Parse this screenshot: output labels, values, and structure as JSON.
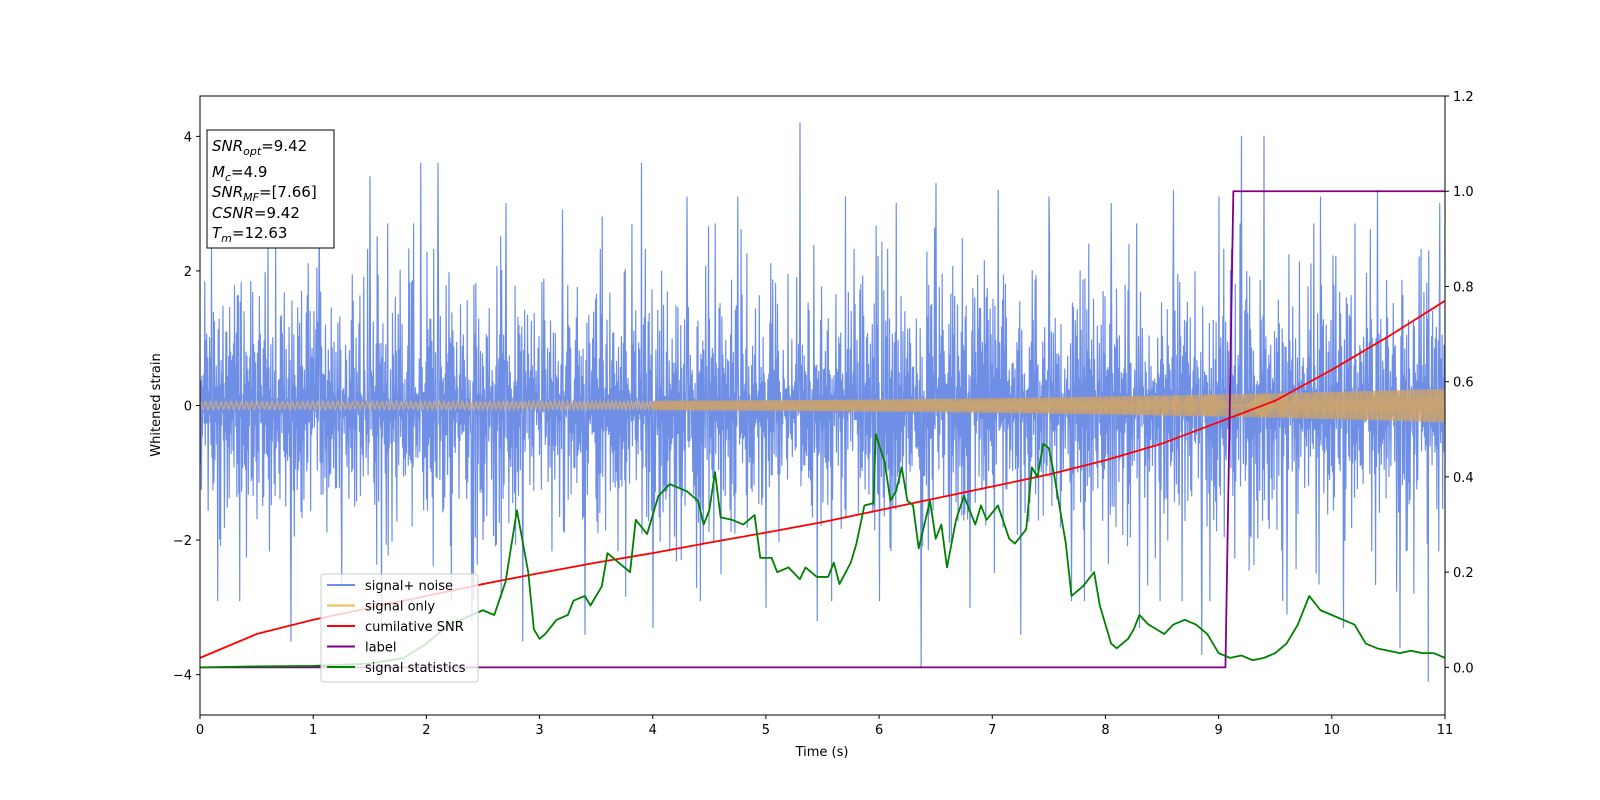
{
  "chart_data": {
    "type": "line",
    "xlabel": "Time (s)",
    "ylabel": "Whitened strain",
    "xlim": [
      0,
      11
    ],
    "ylim_left": [
      -4.6,
      4.6
    ],
    "ylim_right": [
      -0.1,
      1.2
    ],
    "x_ticks": [
      0,
      1,
      2,
      3,
      4,
      5,
      6,
      7,
      8,
      9,
      10,
      11
    ],
    "y_ticks_left": [
      4,
      2,
      0,
      -2,
      -4
    ],
    "y_ticks_right": [
      1.2,
      1.0,
      0.8,
      0.6,
      0.4,
      0.2,
      0.0
    ],
    "legend_position": "lower-left",
    "legend": [
      {
        "label": "signal+ noise",
        "color": "#6f8fe6"
      },
      {
        "label": "signal only",
        "color": "#f5b857"
      },
      {
        "label": "cumilative SNR",
        "color": "#ff0000"
      },
      {
        "label": "label",
        "color": "#800080"
      },
      {
        "label": "signal statistics",
        "color": "#008000"
      }
    ],
    "info_box": {
      "snr_opt": {
        "sym": "SNR",
        "sub": "opt",
        "value": "=9.42"
      },
      "mc": {
        "sym": "M",
        "sub": "c",
        "value": "=4.9"
      },
      "snr_mf": {
        "sym": "SNR",
        "sub": "MF",
        "value": "=[7.66]"
      },
      "csnr": {
        "sym": "CSNR",
        "sub": "",
        "value": "=9.42"
      },
      "tm": {
        "sym": "T",
        "sub": "m",
        "value": "=12.63"
      }
    },
    "series": [
      {
        "name": "signal+ noise",
        "axis": "left",
        "color": "#6f8fe6",
        "envelope_typical": 1.8,
        "peaks": [
          [
            0.1,
            2.5
          ],
          [
            0.35,
            -2.9
          ],
          [
            0.6,
            2.6
          ],
          [
            0.8,
            -3.5
          ],
          [
            1.05,
            3.0
          ],
          [
            1.25,
            -2.7
          ],
          [
            1.5,
            3.4
          ],
          [
            1.6,
            -3.3
          ],
          [
            1.95,
            3.6
          ],
          [
            2.1,
            3.6
          ],
          [
            2.4,
            -3.2
          ],
          [
            2.7,
            3.0
          ],
          [
            2.85,
            -3.5
          ],
          [
            3.2,
            2.9
          ],
          [
            3.4,
            -3.4
          ],
          [
            3.55,
            2.8
          ],
          [
            3.9,
            3.6
          ],
          [
            4.0,
            -3.3
          ],
          [
            4.3,
            3.1
          ],
          [
            4.6,
            -2.5
          ],
          [
            4.75,
            3.1
          ],
          [
            5.0,
            -3.0
          ],
          [
            5.3,
            4.2
          ],
          [
            5.45,
            -3.2
          ],
          [
            5.7,
            3.1
          ],
          [
            6.0,
            -2.9
          ],
          [
            6.15,
            3.0
          ],
          [
            6.37,
            -3.9
          ],
          [
            6.5,
            3.3
          ],
          [
            6.8,
            -3.0
          ],
          [
            7.05,
            3.2
          ],
          [
            7.25,
            -3.4
          ],
          [
            7.5,
            3.1
          ],
          [
            7.7,
            -2.9
          ],
          [
            8.05,
            3.0
          ],
          [
            8.3,
            -3.3
          ],
          [
            8.6,
            3.2
          ],
          [
            8.85,
            -3.7
          ],
          [
            9.0,
            3.1
          ],
          [
            9.2,
            4.0
          ],
          [
            9.4,
            4.0
          ],
          [
            9.6,
            -3.1
          ],
          [
            9.9,
            3.1
          ],
          [
            10.1,
            -3.3
          ],
          [
            10.4,
            3.2
          ],
          [
            10.6,
            -3.6
          ],
          [
            10.85,
            -4.1
          ],
          [
            10.95,
            3.0
          ]
        ]
      },
      {
        "name": "signal only",
        "axis": "left",
        "color": "#f5b857",
        "amplitude_start": 0.06,
        "amplitude_end": 0.25
      },
      {
        "name": "cumilative SNR",
        "axis": "right",
        "color": "#ff0000",
        "points": [
          [
            0,
            0.02
          ],
          [
            0.5,
            0.07
          ],
          [
            1,
            0.1
          ],
          [
            1.5,
            0.125
          ],
          [
            2,
            0.15
          ],
          [
            2.5,
            0.175
          ],
          [
            3,
            0.198
          ],
          [
            3.5,
            0.22
          ],
          [
            4,
            0.24
          ],
          [
            4.5,
            0.262
          ],
          [
            5,
            0.283
          ],
          [
            5.5,
            0.305
          ],
          [
            6,
            0.33
          ],
          [
            6.5,
            0.355
          ],
          [
            7,
            0.38
          ],
          [
            7.5,
            0.405
          ],
          [
            8,
            0.435
          ],
          [
            8.5,
            0.47
          ],
          [
            9,
            0.515
          ],
          [
            9.5,
            0.56
          ],
          [
            10,
            0.625
          ],
          [
            10.5,
            0.695
          ],
          [
            11,
            0.77
          ]
        ]
      },
      {
        "name": "label",
        "axis": "right",
        "color": "#800080",
        "points": [
          [
            0,
            0.0
          ],
          [
            9.06,
            0.0
          ],
          [
            9.13,
            1.0
          ],
          [
            11,
            1.0
          ]
        ]
      },
      {
        "name": "signal statistics",
        "axis": "right",
        "color": "#008000",
        "points": [
          [
            0,
            0.0
          ],
          [
            0.5,
            0.002
          ],
          [
            1,
            0.003
          ],
          [
            1.5,
            0.008
          ],
          [
            1.8,
            0.02
          ],
          [
            2.0,
            0.05
          ],
          [
            2.1,
            0.07
          ],
          [
            2.2,
            0.09
          ],
          [
            2.3,
            0.1
          ],
          [
            2.4,
            0.11
          ],
          [
            2.5,
            0.12
          ],
          [
            2.6,
            0.11
          ],
          [
            2.7,
            0.18
          ],
          [
            2.8,
            0.33
          ],
          [
            2.9,
            0.2
          ],
          [
            2.95,
            0.08
          ],
          [
            3.0,
            0.06
          ],
          [
            3.05,
            0.07
          ],
          [
            3.15,
            0.1
          ],
          [
            3.25,
            0.11
          ],
          [
            3.3,
            0.14
          ],
          [
            3.4,
            0.15
          ],
          [
            3.45,
            0.13
          ],
          [
            3.55,
            0.17
          ],
          [
            3.6,
            0.24
          ],
          [
            3.7,
            0.22
          ],
          [
            3.8,
            0.2
          ],
          [
            3.85,
            0.31
          ],
          [
            3.95,
            0.28
          ],
          [
            4.05,
            0.36
          ],
          [
            4.15,
            0.385
          ],
          [
            4.3,
            0.37
          ],
          [
            4.4,
            0.35
          ],
          [
            4.45,
            0.3
          ],
          [
            4.5,
            0.33
          ],
          [
            4.55,
            0.41
          ],
          [
            4.6,
            0.315
          ],
          [
            4.7,
            0.31
          ],
          [
            4.8,
            0.3
          ],
          [
            4.9,
            0.32
          ],
          [
            4.95,
            0.23
          ],
          [
            5.05,
            0.23
          ],
          [
            5.1,
            0.2
          ],
          [
            5.2,
            0.21
          ],
          [
            5.3,
            0.185
          ],
          [
            5.35,
            0.21
          ],
          [
            5.45,
            0.19
          ],
          [
            5.55,
            0.19
          ],
          [
            5.6,
            0.22
          ],
          [
            5.65,
            0.175
          ],
          [
            5.75,
            0.22
          ],
          [
            5.8,
            0.26
          ],
          [
            5.87,
            0.34
          ],
          [
            5.95,
            0.345
          ],
          [
            5.97,
            0.49
          ],
          [
            6.05,
            0.43
          ],
          [
            6.1,
            0.35
          ],
          [
            6.15,
            0.37
          ],
          [
            6.2,
            0.42
          ],
          [
            6.25,
            0.35
          ],
          [
            6.3,
            0.34
          ],
          [
            6.35,
            0.25
          ],
          [
            6.45,
            0.35
          ],
          [
            6.5,
            0.27
          ],
          [
            6.55,
            0.3
          ],
          [
            6.6,
            0.21
          ],
          [
            6.68,
            0.31
          ],
          [
            6.75,
            0.36
          ],
          [
            6.85,
            0.3
          ],
          [
            6.9,
            0.34
          ],
          [
            6.95,
            0.31
          ],
          [
            7.05,
            0.34
          ],
          [
            7.15,
            0.27
          ],
          [
            7.2,
            0.26
          ],
          [
            7.3,
            0.29
          ],
          [
            7.35,
            0.42
          ],
          [
            7.4,
            0.4
          ],
          [
            7.45,
            0.47
          ],
          [
            7.5,
            0.46
          ],
          [
            7.55,
            0.4
          ],
          [
            7.6,
            0.33
          ],
          [
            7.65,
            0.26
          ],
          [
            7.7,
            0.15
          ],
          [
            7.8,
            0.17
          ],
          [
            7.9,
            0.2
          ],
          [
            7.95,
            0.13
          ],
          [
            8.05,
            0.05
          ],
          [
            8.1,
            0.04
          ],
          [
            8.2,
            0.06
          ],
          [
            8.25,
            0.08
          ],
          [
            8.3,
            0.11
          ],
          [
            8.38,
            0.09
          ],
          [
            8.45,
            0.08
          ],
          [
            8.52,
            0.07
          ],
          [
            8.6,
            0.09
          ],
          [
            8.7,
            0.1
          ],
          [
            8.8,
            0.09
          ],
          [
            8.9,
            0.07
          ],
          [
            9.0,
            0.03
          ],
          [
            9.1,
            0.02
          ],
          [
            9.2,
            0.025
          ],
          [
            9.3,
            0.015
          ],
          [
            9.4,
            0.02
          ],
          [
            9.5,
            0.03
          ],
          [
            9.6,
            0.05
          ],
          [
            9.7,
            0.09
          ],
          [
            9.8,
            0.15
          ],
          [
            9.9,
            0.12
          ],
          [
            10.0,
            0.11
          ],
          [
            10.1,
            0.1
          ],
          [
            10.2,
            0.09
          ],
          [
            10.3,
            0.05
          ],
          [
            10.4,
            0.04
          ],
          [
            10.5,
            0.035
          ],
          [
            10.6,
            0.03
          ],
          [
            10.7,
            0.035
          ],
          [
            10.8,
            0.03
          ],
          [
            10.9,
            0.03
          ],
          [
            11,
            0.02
          ]
        ]
      }
    ]
  }
}
